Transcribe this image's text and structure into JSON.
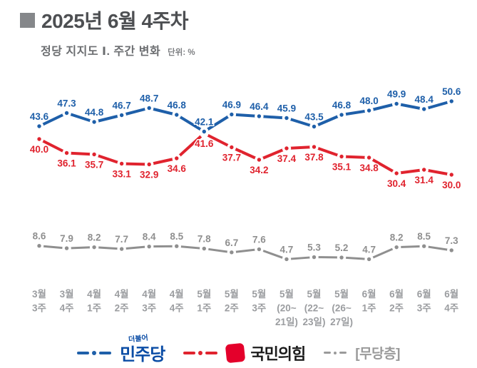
{
  "header": {
    "title": "2025년 6월 4주차",
    "subtitle": "정당 지지도 Ⅰ. 주간 변화",
    "unit_label": "단위: %"
  },
  "chart_data": {
    "type": "line",
    "title": "정당 지지도 주간 변화",
    "unit": "%",
    "grid": false,
    "legend_position": "bottom",
    "ylim_main": [
      28,
      53
    ],
    "ylim_sub": [
      4,
      10
    ],
    "categories": [
      [
        "3월",
        "3주"
      ],
      [
        "3월",
        "4주"
      ],
      [
        "4월",
        "1주"
      ],
      [
        "4월",
        "2주"
      ],
      [
        "4월",
        "3주"
      ],
      [
        "4월",
        "4주"
      ],
      [
        "5월",
        "1주"
      ],
      [
        "5월",
        "2주"
      ],
      [
        "5월",
        "3주"
      ],
      [
        "5월",
        "(20~",
        "21일)"
      ],
      [
        "5월",
        "(22~",
        "23일)"
      ],
      [
        "5월",
        "(26~",
        "27일)"
      ],
      [
        "6월",
        "1주"
      ],
      [
        "6월",
        "2주"
      ],
      [
        "6월",
        "3주"
      ],
      [
        "6월",
        "4주"
      ]
    ],
    "series": [
      {
        "key": "independents",
        "name": "무당층",
        "color": "#8f8f8f",
        "band": "sub",
        "label_position": "above",
        "values": [
          8.6,
          7.9,
          8.2,
          7.7,
          8.4,
          8.5,
          7.8,
          6.7,
          7.6,
          4.7,
          5.3,
          5.2,
          4.7,
          8.2,
          8.5,
          7.3
        ]
      },
      {
        "key": "ppp",
        "name": "국민의힘",
        "color": "#e0232e",
        "band": "main",
        "label_position": "below",
        "values": [
          40.0,
          36.1,
          35.7,
          33.1,
          32.9,
          34.6,
          41.6,
          37.7,
          34.2,
          37.4,
          37.8,
          35.1,
          34.8,
          30.4,
          31.4,
          30.0
        ]
      },
      {
        "key": "dp",
        "name": "민주당",
        "color": "#1e5fa9",
        "band": "main",
        "label_position": "above",
        "values": [
          43.6,
          47.3,
          44.8,
          46.7,
          48.7,
          46.8,
          42.1,
          46.9,
          46.4,
          45.9,
          43.5,
          46.8,
          48.0,
          49.9,
          48.4,
          50.6
        ]
      }
    ]
  },
  "legend": {
    "items": [
      {
        "label": "민주당",
        "sub_label": "더불어",
        "color": "#0a4ca5"
      },
      {
        "label": "국민의힘",
        "color": "#e4002b"
      },
      {
        "label": "[무당층]",
        "color": "#9a9a9a"
      }
    ]
  }
}
